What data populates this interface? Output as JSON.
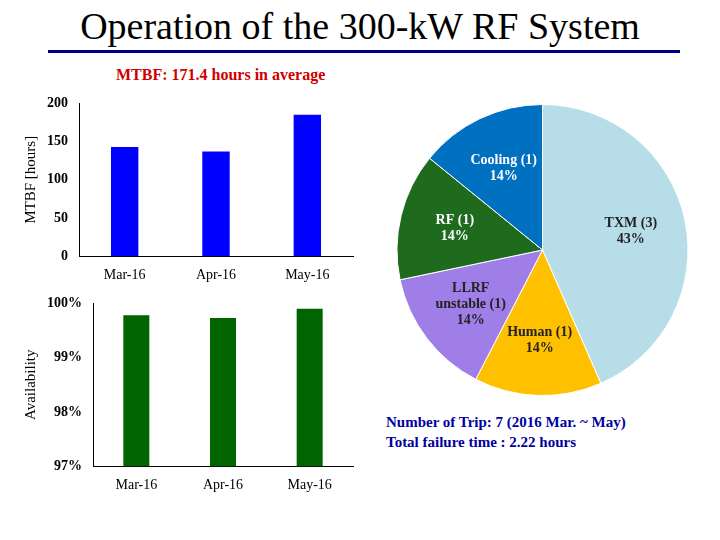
{
  "title": "Operation of the 300-kW RF System",
  "subtitle": "MTBF: 171.4 hours in average",
  "notes": [
    "Number of Trip: 7 (2016 Mar. ~ May)",
    "Total failure time : 2.22 hours"
  ],
  "chart_data": [
    {
      "type": "bar",
      "ylabel": "MTBF [hours]",
      "categories": [
        "Mar-16",
        "Apr-16",
        "May-16"
      ],
      "values": [
        143,
        137,
        185
      ],
      "color": "#0000ff",
      "ylim": [
        0,
        200
      ],
      "yticks": [
        0,
        50,
        100,
        150,
        200
      ],
      "grid": false
    },
    {
      "type": "bar",
      "ylabel": "Availability",
      "categories": [
        "Mar-16",
        "Apr-16",
        "May-16"
      ],
      "values": [
        99.78,
        99.73,
        99.9
      ],
      "color": "#006400",
      "ylim": [
        97,
        100
      ],
      "yticks": [
        {
          "value": 97,
          "label": "97%"
        },
        {
          "value": 98,
          "label": "98%"
        },
        {
          "value": 99,
          "label": "99%"
        },
        {
          "value": 100,
          "label": "100%"
        }
      ],
      "grid": false
    },
    {
      "type": "pie",
      "categories": [
        "TXM (3)",
        "Human (1)",
        "LLRF unstable (1)",
        "RF (1)",
        "Cooling (1)"
      ],
      "values": [
        43,
        14,
        14,
        14,
        14
      ],
      "value_labels": [
        "43%",
        "14%",
        "14%",
        "14%",
        "14%"
      ],
      "colors": [
        "#b7dde8",
        "#ffc000",
        "#a07ee8",
        "#1e6b1e",
        "#0070c0"
      ],
      "data_labels": true
    }
  ]
}
